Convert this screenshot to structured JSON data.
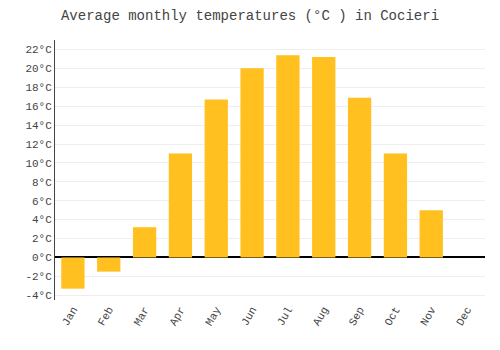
{
  "chart_data": {
    "type": "bar",
    "title": "Average monthly temperatures (°C ) in Cocieri",
    "categories": [
      "Jan",
      "Feb",
      "Mar",
      "Apr",
      "May",
      "Jun",
      "Jul",
      "Aug",
      "Sep",
      "Oct",
      "Nov",
      "Dec"
    ],
    "values": [
      -3.3,
      -1.5,
      3.2,
      11.0,
      16.7,
      20.0,
      21.4,
      21.2,
      16.9,
      11.0,
      5.0,
      0.0
    ],
    "color": "#FFC020",
    "ylim": [
      -4.5,
      23
    ],
    "yticks": [
      {
        "value": -4,
        "label": "-4°C"
      },
      {
        "value": -2,
        "label": "-2°C"
      },
      {
        "value": 0,
        "label": "0°C"
      },
      {
        "value": 2,
        "label": "2°C"
      },
      {
        "value": 4,
        "label": "4°C"
      },
      {
        "value": 6,
        "label": "6°C"
      },
      {
        "value": 8,
        "label": "8°C"
      },
      {
        "value": 10,
        "label": "10°C"
      },
      {
        "value": 12,
        "label": "12°C"
      },
      {
        "value": 14,
        "label": "14°C"
      },
      {
        "value": 16,
        "label": "16°C"
      },
      {
        "value": 18,
        "label": "18°C"
      },
      {
        "value": 20,
        "label": "20°C"
      },
      {
        "value": 22,
        "label": "22°C"
      }
    ],
    "grid": true
  }
}
